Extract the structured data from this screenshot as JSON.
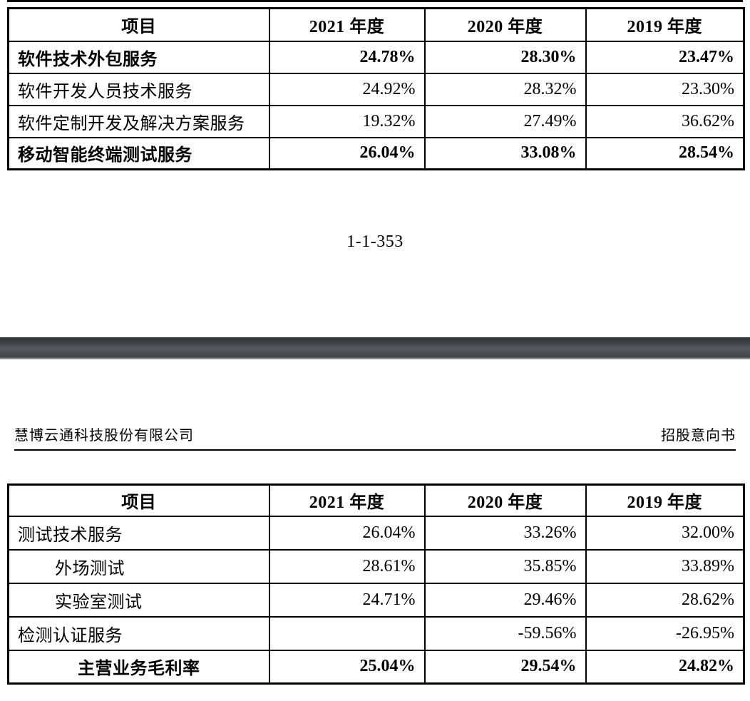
{
  "page": {
    "number_label": "1-1-353"
  },
  "doc_header": {
    "company": "慧博云通科技股份有限公司",
    "doc_type": "招股意向书"
  },
  "colors": {
    "background": "#ffffff",
    "text": "#000000",
    "table_border": "#000000",
    "separator_bar_mid": "#565a5e",
    "separator_bar_dark": "#2c3034"
  },
  "table1": {
    "columns": [
      "项目",
      "2021 年度",
      "2020 年度",
      "2019 年度"
    ],
    "rows": [
      {
        "label": "软件技术外包服务",
        "values": [
          "24.78%",
          "28.30%",
          "23.47%"
        ],
        "bold": true
      },
      {
        "label": "软件开发人员技术服务",
        "values": [
          "24.92%",
          "28.32%",
          "23.30%"
        ]
      },
      {
        "label": "软件定制开发及解决方案服务",
        "values": [
          "19.32%",
          "27.49%",
          "36.62%"
        ]
      },
      {
        "label": "移动智能终端测试服务",
        "values": [
          "26.04%",
          "33.08%",
          "28.54%"
        ],
        "bold": true
      }
    ]
  },
  "table2": {
    "columns": [
      "项目",
      "2021 年度",
      "2020 年度",
      "2019 年度"
    ],
    "rows": [
      {
        "label": "测试技术服务",
        "values": [
          "26.04%",
          "33.26%",
          "32.00%"
        ]
      },
      {
        "label": "外场测试",
        "values": [
          "28.61%",
          "35.85%",
          "33.89%"
        ],
        "indent": true
      },
      {
        "label": "实验室测试",
        "values": [
          "24.71%",
          "29.46%",
          "28.62%"
        ],
        "indent": true
      },
      {
        "label": "检测认证服务",
        "values": [
          "",
          "-59.56%",
          "-26.95%"
        ]
      },
      {
        "label": "主营业务毛利率",
        "values": [
          "25.04%",
          "29.54%",
          "24.82%"
        ],
        "bold": true,
        "center": true
      }
    ]
  }
}
